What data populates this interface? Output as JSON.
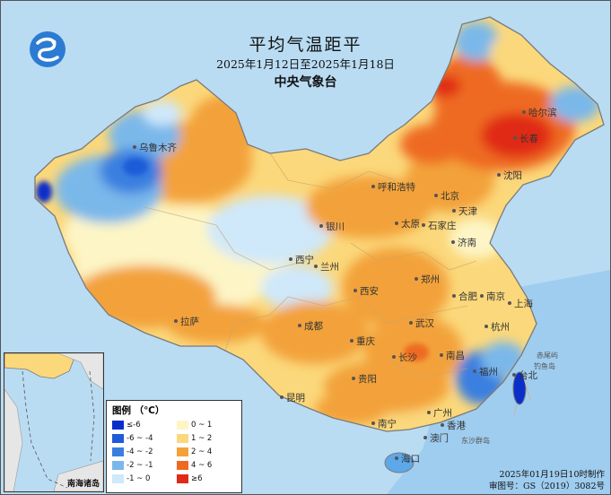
{
  "map": {
    "title": "平均气温距平",
    "period": "2025年1月12日至2025年1月18日",
    "agency": "中央气象台",
    "colors": {
      "sea": "#b9dcf3",
      "land_light_yellow": "#fdf5c6",
      "land_yellow": "#fbd87b",
      "land_orange": "#f3a23a",
      "land_dark_orange": "#ee6a22",
      "land_red": "#e02a18",
      "land_light_blue": "#cfe8fa",
      "land_blue": "#7ab8ea",
      "land_dark_blue": "#3a7fd6"
    }
  },
  "cities": [
    {
      "name": "哈尔滨"
    },
    {
      "name": "长春"
    },
    {
      "name": "沈阳"
    },
    {
      "name": "呼和浩特"
    },
    {
      "name": "北京"
    },
    {
      "name": "天津"
    },
    {
      "name": "银川"
    },
    {
      "name": "太原"
    },
    {
      "name": "石家庄"
    },
    {
      "name": "济南"
    },
    {
      "name": "西宁"
    },
    {
      "name": "兰州"
    },
    {
      "name": "郑州"
    },
    {
      "name": "西安"
    },
    {
      "name": "合肥"
    },
    {
      "name": "南京"
    },
    {
      "name": "上海"
    },
    {
      "name": "拉萨"
    },
    {
      "name": "成都"
    },
    {
      "name": "武汉"
    },
    {
      "name": "杭州"
    },
    {
      "name": "重庆"
    },
    {
      "name": "长沙"
    },
    {
      "name": "南昌"
    },
    {
      "name": "贵阳"
    },
    {
      "name": "福州"
    },
    {
      "name": "台北"
    },
    {
      "name": "昆明"
    },
    {
      "name": "南宁"
    },
    {
      "name": "广州"
    },
    {
      "name": "香港"
    },
    {
      "name": "澳门"
    },
    {
      "name": "海口"
    },
    {
      "name": "乌鲁木齐"
    }
  ],
  "islands": [
    {
      "name": "赤尾屿"
    },
    {
      "name": "钓鱼岛"
    },
    {
      "name": "东沙群岛"
    }
  ],
  "legend": {
    "title": "图例 （℃）",
    "items": [
      {
        "label": "≤-6",
        "color": "#0a2fc9"
      },
      {
        "label": "-6 ~ -4",
        "color": "#1f5bd8"
      },
      {
        "label": "-4 ~ -2",
        "color": "#3a7fe0"
      },
      {
        "label": "-2 ~ -1",
        "color": "#7ab8ea"
      },
      {
        "label": "-1 ~ 0",
        "color": "#cfe8fa"
      },
      {
        "label": "0 ~ 1",
        "color": "#fdf5c6"
      },
      {
        "label": "1 ~ 2",
        "color": "#fbd87b"
      },
      {
        "label": "2 ~ 4",
        "color": "#f3a23a"
      },
      {
        "label": "4 ~ 6",
        "color": "#ee6a22"
      },
      {
        "label": "≥6",
        "color": "#e02a18"
      }
    ]
  },
  "inset": {
    "label": "南海诸岛"
  },
  "credits": {
    "made": "2025年01月19日10时制作",
    "approval": "审图号：GS（2019）3082号"
  }
}
